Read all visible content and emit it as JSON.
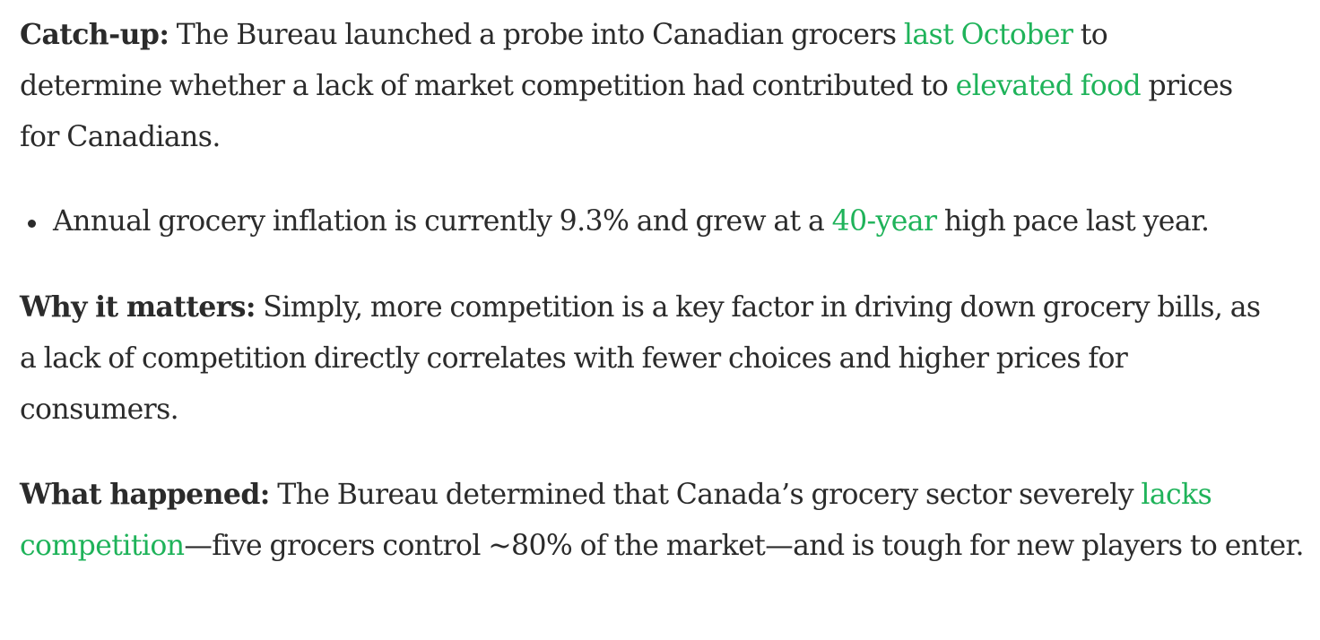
{
  "paragraphs": [
    {
      "lead": "Catch-up:",
      "t1": " The Bureau launched a probe into Canadian grocers ",
      "link1": "last October",
      "t2": " to determine whether a lack of market competition had contributed to ",
      "link2": "elevated food",
      "t3": " prices for Canadians."
    },
    {
      "lead": "Why it matters:",
      "t1": " Simply, more competition is a key factor in driving down grocery bills, as a lack of competition directly correlates with fewer choices and higher prices for consumers."
    },
    {
      "lead": "What happened:",
      "t1": " The Bureau determined that Canada’s grocery sector severely ",
      "link1": "lacks competition",
      "t2": "—five grocers control ~80% of the market—and is tough for new players to enter."
    }
  ],
  "bullets": [
    {
      "t1": "Annual grocery inflation is currently 9.3% and grew at a ",
      "link1": "40-year",
      "t2": " high pace last year."
    }
  ],
  "colors": {
    "text": "#2b2b2b",
    "link": "#1fb35a",
    "background": "#ffffff"
  }
}
